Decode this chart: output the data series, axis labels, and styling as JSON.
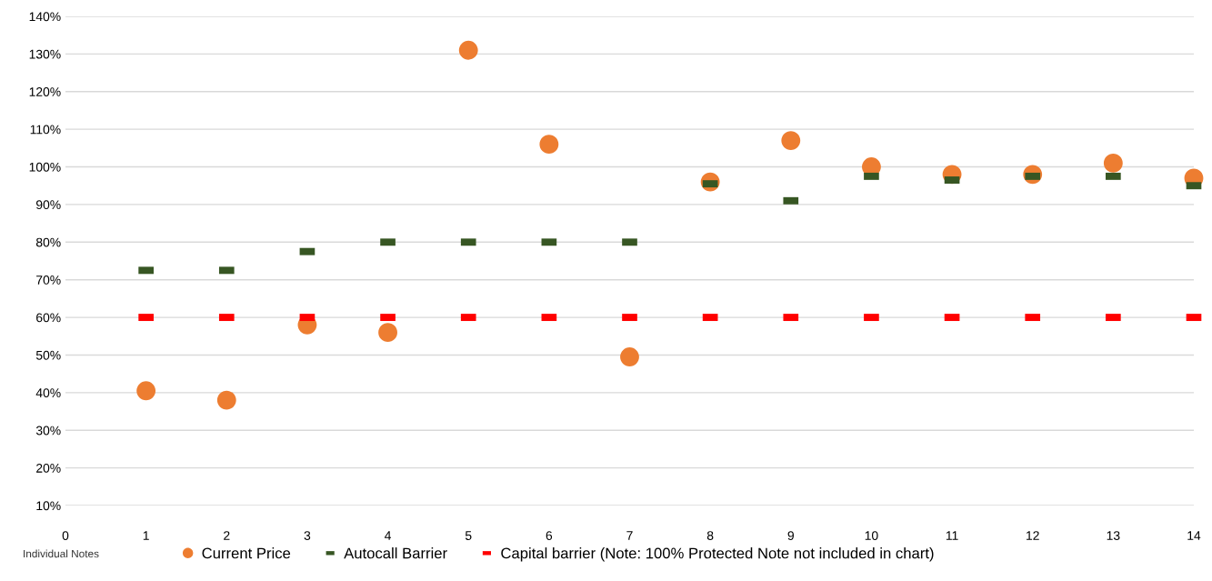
{
  "chart_data": {
    "type": "scatter",
    "xlabel": "Individual Notes",
    "x": [
      1,
      2,
      3,
      4,
      5,
      6,
      7,
      8,
      9,
      10,
      11,
      12,
      13,
      14
    ],
    "series": [
      {
        "name": "Current Price",
        "color": "#ed7d31",
        "marker": "circle",
        "values": [
          40.5,
          38,
          58,
          56,
          131,
          106,
          49.5,
          96,
          107,
          100,
          98,
          98,
          101,
          97
        ]
      },
      {
        "name": "Autocall Barrier",
        "color": "#375623",
        "marker": "square",
        "values": [
          72.5,
          72.5,
          77.5,
          80,
          80,
          80,
          80,
          95.5,
          91,
          97.5,
          96.5,
          97.5,
          97.5,
          95
        ]
      },
      {
        "name": "Capital barrier (Note: 100% Protected Note not included in chart)",
        "color": "#ff0000",
        "marker": "square",
        "values": [
          60,
          60,
          60,
          60,
          60,
          60,
          60,
          60,
          60,
          60,
          60,
          60,
          60,
          60
        ]
      }
    ],
    "xlim": [
      0,
      14
    ],
    "xticks": [
      0,
      1,
      2,
      3,
      4,
      5,
      6,
      7,
      8,
      9,
      10,
      11,
      12,
      13,
      14
    ],
    "ylim": [
      10,
      140
    ],
    "yticks": [
      {
        "value": 10,
        "label": "10%"
      },
      {
        "value": 20,
        "label": "20%"
      },
      {
        "value": 30,
        "label": "30%"
      },
      {
        "value": 40,
        "label": "40%"
      },
      {
        "value": 50,
        "label": "50%"
      },
      {
        "value": 60,
        "label": "60%"
      },
      {
        "value": 70,
        "label": "70%"
      },
      {
        "value": 80,
        "label": "80%"
      },
      {
        "value": 90,
        "label": "90%"
      },
      {
        "value": 100,
        "label": "100%"
      },
      {
        "value": 110,
        "label": "110%"
      },
      {
        "value": 120,
        "label": "120%"
      },
      {
        "value": 130,
        "label": "130%"
      },
      {
        "value": 140,
        "label": "140%"
      }
    ],
    "grid": "y",
    "legend": "bottom"
  }
}
